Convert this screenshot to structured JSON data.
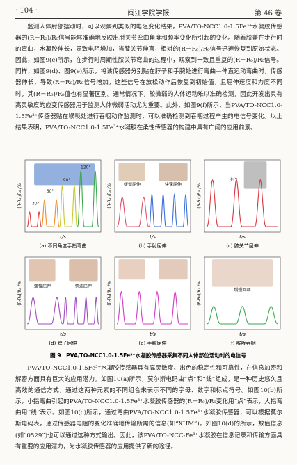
{
  "header": {
    "page": "· 104 ·",
    "journal": "闽江学院学报",
    "volume": "第 46 卷"
  },
  "paragraphs": [
    "监测人体肘部摆动时，可以观察到类似的电阻变化结果，PVA/TO-NCC1.0-1.5Fe³⁺水凝胶传感器的(R－R₀)/R₀信号能够准确地反映出肘关节弯曲角度和频率变化所引起的变化。随着膝盖在步行时的弯曲，水凝胶伸长，导致电阻增加，当膝关节伸直，相对的(R－R₀)/R₀信号迅速恢复到原始状态。因此，如图9(c)所示，在步行时周期性膝关节弯曲的过程中，观察到一致且重复的(R－R₀)/R₀信号。同样，如图9(d)、图9(e)所示，将该传感器分别贴在脖子和手腕处进行弯曲—伸直运动弯曲时，传感器伸长，导致(R－R₀)/R₀信号增加，这些信号在放松动作后恢复到初始值，且屈伸速度和力度不同时，其(R－R₀)/R₀值也有显著区别。通常情况下，较微弱的人体运动难以准确检测，因此开发出具有高灵敏度的应变传感器用于监测人体微弱活动尤为重要。此外，如图9(f)所示，当PVA/TO-NCC1.0-1.5Fe³⁺传感器贴在喉咙处进行吞咽动作监测时，可以准确检测到吞咽过程产生的电信号变化。以上结果表明，PVA/TO-NCC1.0-1.5Fe³⁺水凝胶在柔性传感器的构建中具有广阔的应用前景。",
    "PVA/TO-NCC1.0-1.5Fe³⁺水凝胶传感器具有高灵敏度、出色的稳定性和可靠性，在信息加密和解密方面具有巨大的应用潜力。如图10(a)所示，莫尔斯电码由“点”和“线”组成，是一种历史悠久且高效的通信方式，通过这两种元素的不同组合来表示不同的字母、数字和标点符号。如图10(b)所示，小指弯曲引起的PVA/TO-NCC1.0-1.5Fe³⁺水凝胶传感器的(R－R₀)/R₀变化用“点”表示，大指弯曲用“线”表示。如图10(c)所示，通过弯曲PVA/TO-NCC1.0-1.5Fe³⁺水凝胶传感器，可以根据莫尔斯电码表，通过传感器电阻的变化准确地传输所需的信息(如“XHM”)。如图10(d)的所示，数值信息(如“0529”)也可以通过这种方式输出。因此，该PVA/TO-NCC-Fe³⁺水凝胶在信息记录和传输方面具有重要的应用潜力，为水凝胶传感器的应用提供了新的途径。"
  ],
  "figure": {
    "caption": "图 9　PVA/TO-NCC1.0-1.5Fe³⁺水凝胶传感器采集不同人体部位活动时的电信号",
    "panels": [
      {
        "y_label": "(R-R₀)/R₀ /%",
        "x_label": "t/s",
        "caption": "(a)  不同角度手指弯曲",
        "annotations": [
          "30°",
          "60°",
          "90°",
          "120°"
        ]
      },
      {
        "y_label": "(R-R₀)/R₀ /%",
        "x_label": "t/s",
        "caption": "(b)  手肘屈伸",
        "annotations": [
          "缓慢屈伸",
          "快速屈伸"
        ]
      },
      {
        "y_label": "(R-R₀)/R₀ /%",
        "x_label": "t/s",
        "caption": "(c)  膝关节屈伸",
        "annotations": [
          "步行"
        ]
      },
      {
        "y_label": "(R-R₀)/R₀ /%",
        "x_label": "t/s",
        "caption": "(d)  脖子屈伸",
        "annotations": [
          "缓慢屈伸",
          "快速屈伸"
        ]
      },
      {
        "y_label": "(R-R₀)/R₀ /%",
        "x_label": "t/s",
        "caption": "(e)  手腕屈伸",
        "annotations": []
      },
      {
        "y_label": "(R-R₀)/R₀ /%",
        "x_label": "t/s",
        "caption": "(f)  喉咙吞咽",
        "annotations": [
          "缓慢吞咽"
        ]
      }
    ]
  }
}
